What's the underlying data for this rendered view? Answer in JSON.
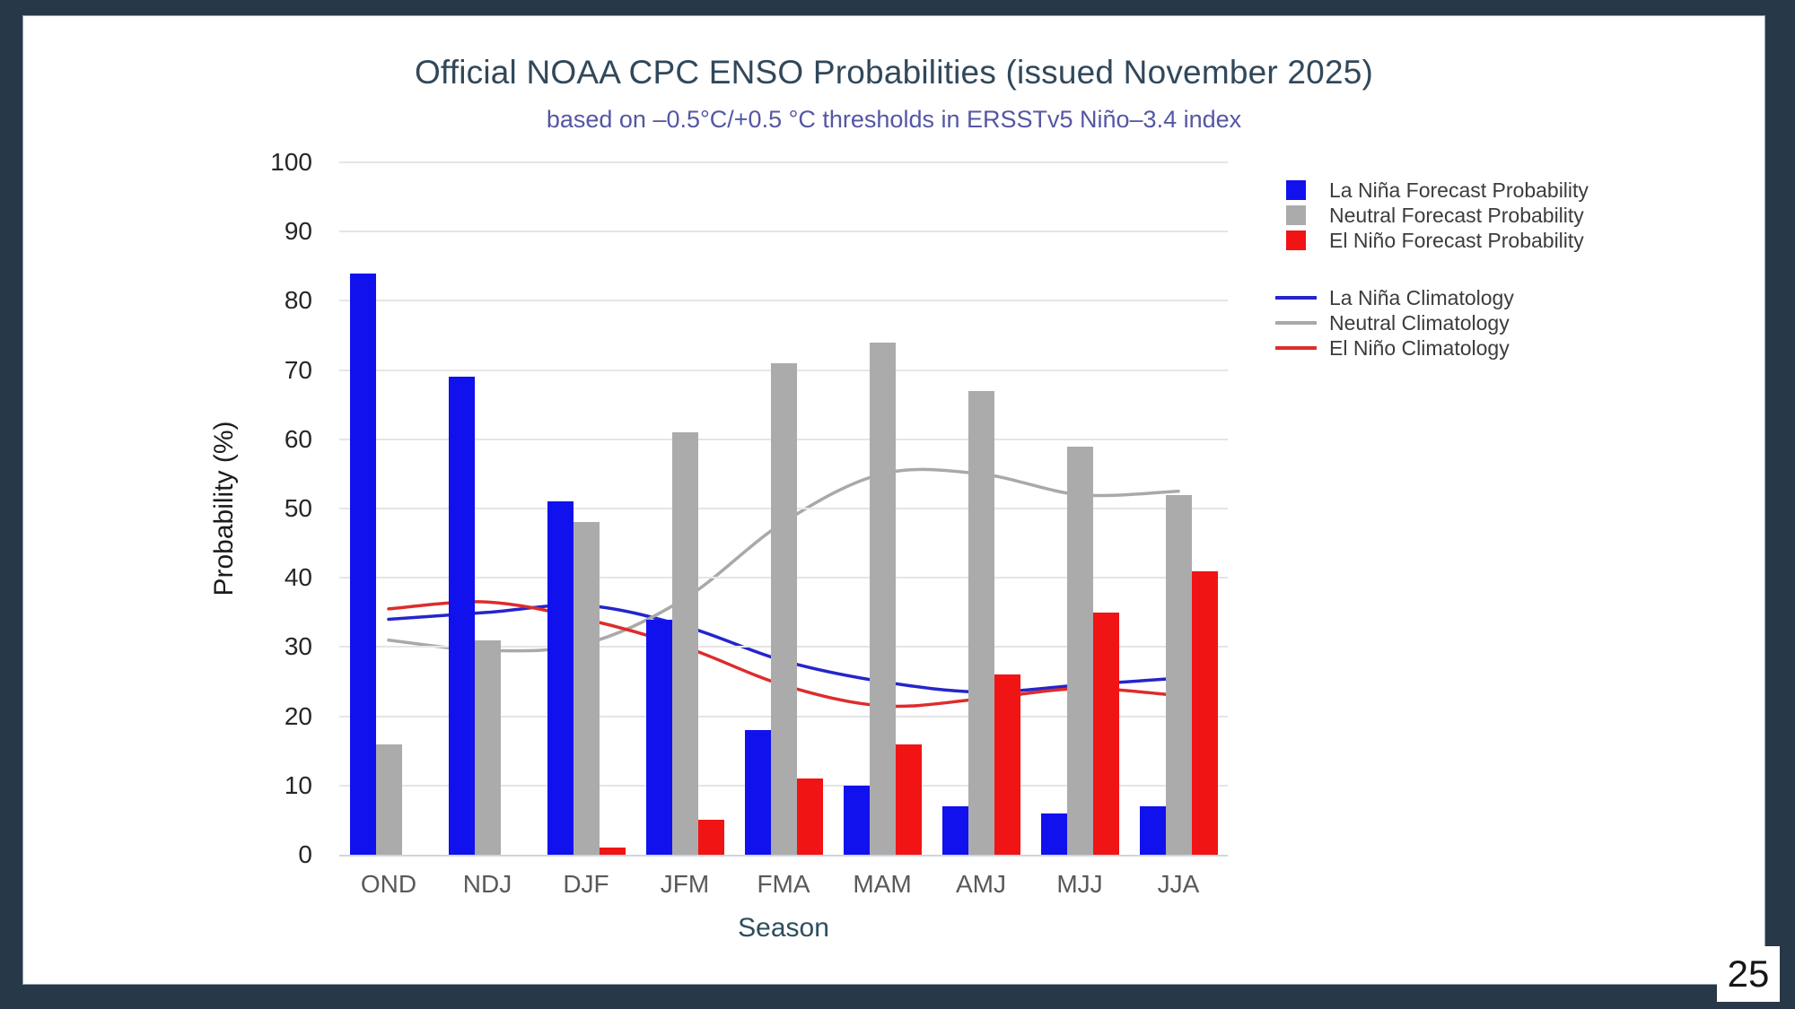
{
  "page_number": "25",
  "frame_color": "#273849",
  "chart": {
    "title": "Official NOAA CPC ENSO Probabilities (issued November 2025)",
    "subtitle": "based on –0.5°C/+0.5 °C thresholds in ERSSTv5 Niño–3.4 index",
    "xlabel": "Season",
    "ylabel": "Probability (%)",
    "title_color": "#31485a",
    "subtitle_color": "#5457a3"
  },
  "chart_data": {
    "type": "bar+line",
    "title": "Official NOAA CPC ENSO Probabilities (issued November 2025)",
    "subtitle": "based on –0.5°C/+0.5 °C thresholds in ERSSTv5 Niño–3.4 index",
    "xlabel": "Season",
    "ylabel": "Probability (%)",
    "ylim": [
      0,
      100
    ],
    "yticks": [
      0,
      10,
      20,
      30,
      40,
      50,
      60,
      70,
      80,
      90,
      100
    ],
    "grid": true,
    "legend_position": "right",
    "categories": [
      "OND",
      "NDJ",
      "DJF",
      "JFM",
      "FMA",
      "MAM",
      "AMJ",
      "MJJ",
      "JJA"
    ],
    "series": [
      {
        "name": "La Niña Forecast Probability",
        "type": "bar",
        "color": "#1111ee",
        "values": [
          84,
          69,
          51,
          34,
          18,
          10,
          7,
          6,
          7
        ]
      },
      {
        "name": "Neutral Forecast Probability",
        "type": "bar",
        "color": "#ababab",
        "values": [
          16,
          31,
          48,
          61,
          71,
          74,
          67,
          59,
          52
        ]
      },
      {
        "name": "El Niño Forecast Probability",
        "type": "bar",
        "color": "#f11414",
        "values": [
          0,
          0,
          1,
          5,
          11,
          16,
          26,
          35,
          41
        ]
      },
      {
        "name": "La Niña Climatology",
        "type": "line",
        "color": "#2525cc",
        "values": [
          34,
          35,
          36,
          33,
          28,
          25,
          23.5,
          24.5,
          25.5
        ]
      },
      {
        "name": "Neutral Climatology",
        "type": "line",
        "color": "#a9a9a9",
        "values": [
          31,
          29.5,
          30.5,
          37,
          48,
          55,
          55,
          52,
          52.5
        ]
      },
      {
        "name": "El Niño Climatology",
        "type": "line",
        "color": "#dd2c2c",
        "values": [
          35.5,
          36.5,
          34,
          30,
          24.5,
          21.5,
          22.5,
          24,
          23
        ]
      }
    ]
  }
}
